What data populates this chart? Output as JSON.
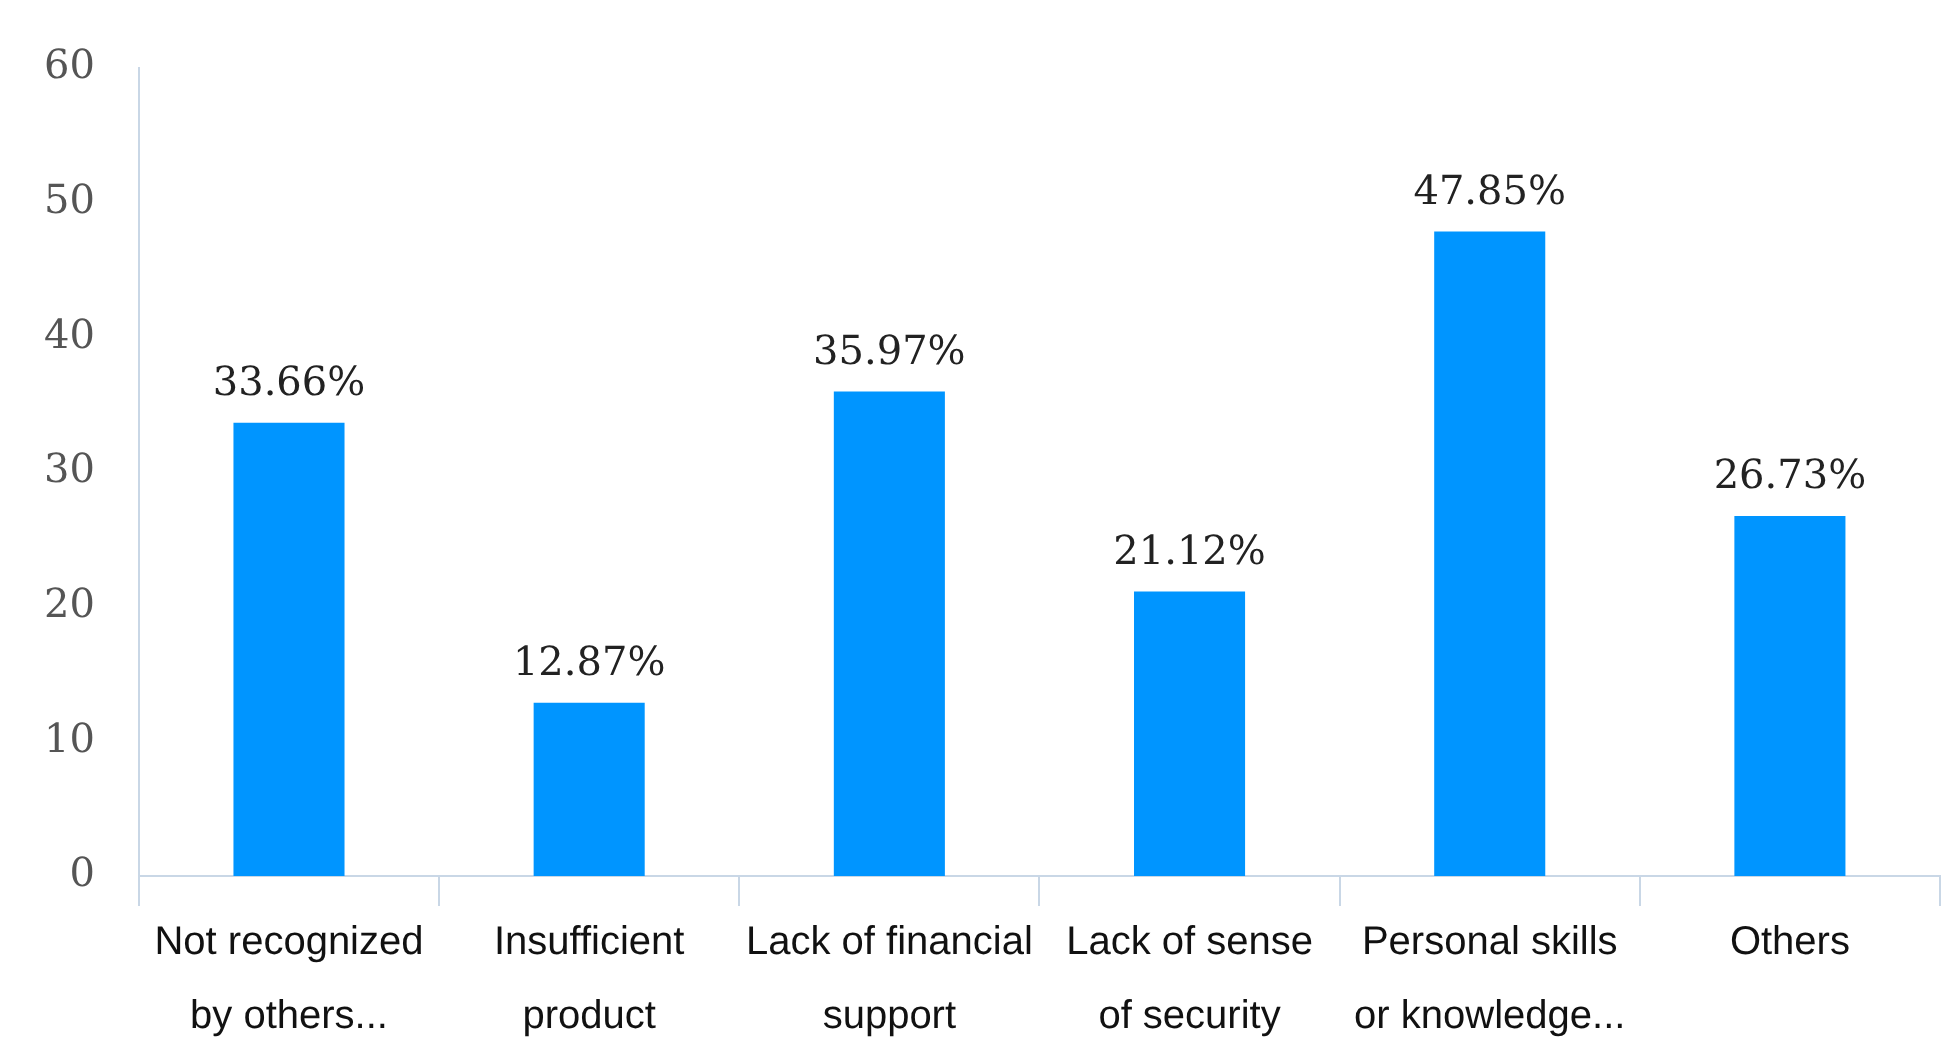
{
  "chart_data": {
    "type": "bar",
    "categories": [
      "Not recognized by others...",
      "Insufficient product",
      "Lack of financial support",
      "Lack of sense of security",
      "Personal skills or knowledge...",
      "Others"
    ],
    "values": [
      33.66,
      12.87,
      35.97,
      21.12,
      47.85,
      26.73
    ],
    "value_labels": [
      "33.66%",
      "12.87%",
      "35.97%",
      "21.12%",
      "47.85%",
      "26.73%"
    ],
    "color": "#0095ff",
    "ylim": [
      0,
      60
    ],
    "yticks": [
      0,
      10,
      20,
      30,
      40,
      50,
      60
    ]
  }
}
